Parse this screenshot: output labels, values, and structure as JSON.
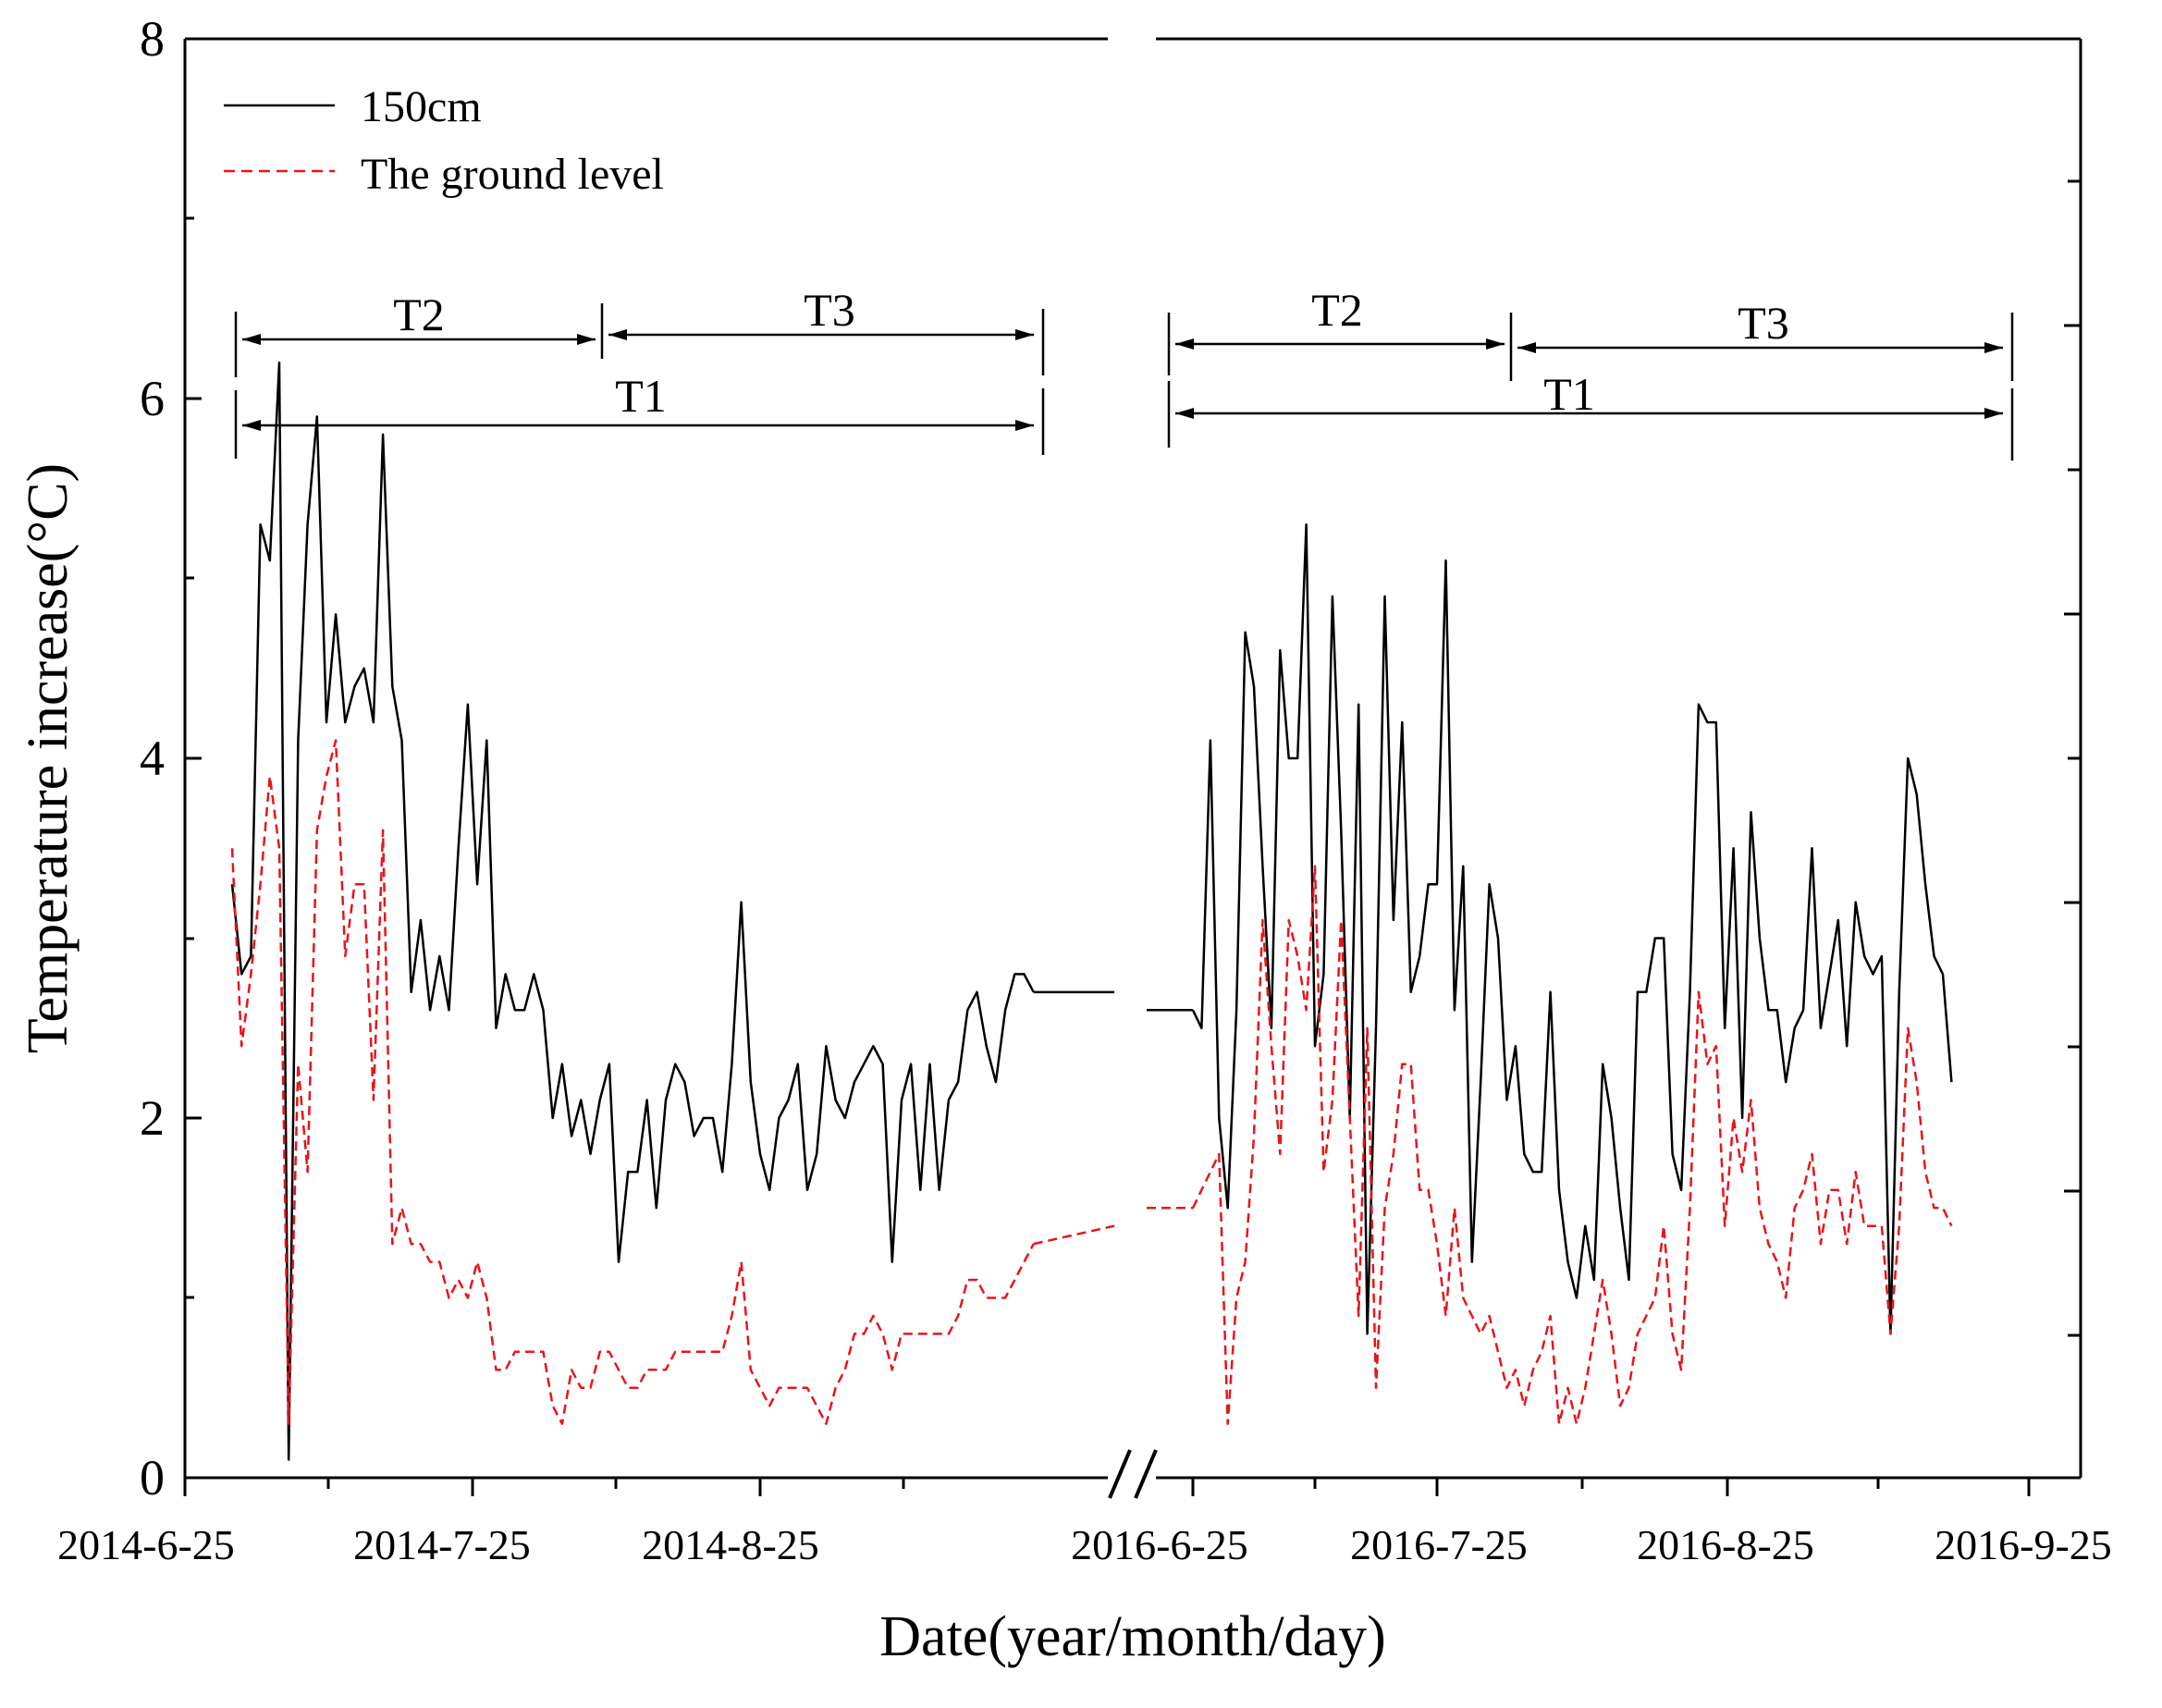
{
  "chart_data": {
    "type": "line",
    "title": "",
    "xlabel": "Date(year/month/day)",
    "ylabel": "Temperature increase(°C)",
    "ylim": [
      0,
      8
    ],
    "yticks": [
      "0",
      "2",
      "4",
      "6",
      "8"
    ],
    "xtick_labels": [
      "2014-6-25",
      "2014-7-25",
      "2014-8-25",
      "2016-6-25",
      "2016-7-25",
      "2016-8-25",
      "2016-9-25"
    ],
    "axis_break": "between 2014 and 2016",
    "grid": false,
    "legend_position": "top-left",
    "colors": {
      "series_150cm": "#000000",
      "series_ground": "#e8141b"
    },
    "segments": [
      {
        "year": 2014,
        "x_start_day": 5,
        "x_end_day": 90,
        "series": [
          {
            "name": "150cm",
            "style": "solid",
            "values": [
              3.3,
              2.8,
              2.9,
              5.3,
              5.1,
              6.2,
              0.1,
              4.1,
              5.3,
              5.9,
              4.2,
              4.8,
              4.2,
              4.4,
              4.5,
              4.2,
              5.8,
              4.4,
              4.1,
              2.7,
              3.1,
              2.6,
              2.9,
              2.6,
              3.5,
              4.3,
              3.3,
              4.1,
              2.5,
              2.8,
              2.6,
              2.6,
              2.8,
              2.6,
              2.0,
              2.3,
              1.9,
              2.1,
              1.8,
              2.1,
              2.3,
              1.2,
              1.7,
              1.7,
              2.1,
              1.5,
              2.1,
              2.3,
              2.2,
              1.9,
              2.0,
              2.0,
              1.7,
              2.3,
              3.2,
              2.2,
              1.8,
              1.6,
              2.0,
              2.1,
              2.3,
              1.6,
              1.8,
              2.4,
              2.1,
              2.0,
              2.2,
              2.3,
              2.4,
              2.3,
              1.2,
              2.1,
              2.3,
              1.6,
              2.3,
              1.6,
              2.1,
              2.2,
              2.6,
              2.7,
              2.4,
              2.2,
              2.6,
              2.8,
              2.8,
              2.7
            ]
          },
          {
            "name": "The ground level",
            "style": "dashed",
            "values": [
              3.5,
              2.4,
              2.8,
              3.3,
              3.9,
              3.5,
              0.3,
              2.3,
              1.7,
              3.6,
              3.9,
              4.1,
              2.9,
              3.3,
              3.3,
              2.1,
              3.6,
              1.3,
              1.5,
              1.3,
              1.3,
              1.2,
              1.2,
              1.0,
              1.1,
              1.0,
              1.2,
              1.0,
              0.6,
              0.6,
              0.7,
              0.7,
              0.7,
              0.7,
              0.4,
              0.3,
              0.6,
              0.5,
              0.5,
              0.7,
              0.7,
              0.6,
              0.5,
              0.5,
              0.6,
              0.6,
              0.6,
              0.7,
              0.7,
              0.7,
              0.7,
              0.7,
              0.7,
              0.9,
              1.2,
              0.6,
              0.5,
              0.4,
              0.5,
              0.5,
              0.5,
              0.5,
              0.4,
              0.3,
              0.5,
              0.6,
              0.8,
              0.8,
              0.9,
              0.8,
              0.6,
              0.8,
              0.8,
              0.8,
              0.8,
              0.8,
              0.8,
              0.9,
              1.1,
              1.1,
              1.0,
              1.0,
              1.0,
              1.1,
              1.2,
              1.3
            ]
          }
        ]
      },
      {
        "year": 2016,
        "x_start_day": 0,
        "x_end_day": 88,
        "series": [
          {
            "name": "150cm",
            "style": "solid",
            "values": [
              2.6,
              2.5,
              4.1,
              2.0,
              1.5,
              2.6,
              4.7,
              4.4,
              3.4,
              2.5,
              4.6,
              4.0,
              4.0,
              5.3,
              2.4,
              2.8,
              4.9,
              3.6,
              2.0,
              4.3,
              0.8,
              2.5,
              4.9,
              3.1,
              4.2,
              2.7,
              2.9,
              3.3,
              3.3,
              5.1,
              2.6,
              3.4,
              1.2,
              2.2,
              3.3,
              3.0,
              2.1,
              2.4,
              1.8,
              1.7,
              1.7,
              2.7,
              1.6,
              1.2,
              1.0,
              1.4,
              1.1,
              2.3,
              2.0,
              1.5,
              1.1,
              2.7,
              2.7,
              3.0,
              3.0,
              1.8,
              1.6,
              2.7,
              4.3,
              4.2,
              4.2,
              2.5,
              3.5,
              2.0,
              3.7,
              3.0,
              2.6,
              2.6,
              2.2,
              2.5,
              2.6,
              3.5,
              2.5,
              2.8,
              3.1,
              2.4,
              3.2,
              2.9,
              2.8,
              2.9,
              0.8,
              2.7,
              4.0,
              3.8,
              3.3,
              2.9,
              2.8,
              2.2
            ]
          },
          {
            "name": "The ground level",
            "style": "dashed",
            "values": [
              1.5,
              1.6,
              1.7,
              1.8,
              0.3,
              1.0,
              1.2,
              1.9,
              3.1,
              2.4,
              1.8,
              3.1,
              2.9,
              2.6,
              3.4,
              1.7,
              2.1,
              3.1,
              2.0,
              0.9,
              2.5,
              0.5,
              1.5,
              1.8,
              2.3,
              2.3,
              1.6,
              1.6,
              1.3,
              0.9,
              1.5,
              1.0,
              0.9,
              0.8,
              0.9,
              0.7,
              0.5,
              0.6,
              0.4,
              0.6,
              0.7,
              0.9,
              0.3,
              0.5,
              0.3,
              0.5,
              0.8,
              1.1,
              0.8,
              0.4,
              0.5,
              0.8,
              0.9,
              1.0,
              1.4,
              0.8,
              0.6,
              1.5,
              2.7,
              2.3,
              2.4,
              1.4,
              2.0,
              1.7,
              2.1,
              1.5,
              1.3,
              1.2,
              1.0,
              1.5,
              1.6,
              1.8,
              1.3,
              1.6,
              1.6,
              1.3,
              1.7,
              1.4,
              1.4,
              1.4,
              0.8,
              1.4,
              2.5,
              2.2,
              1.7,
              1.5,
              1.5,
              1.4
            ]
          }
        ]
      }
    ],
    "annotations": [
      {
        "label": "T2",
        "segment": 2014,
        "level": "upper",
        "from_day": 5,
        "to_day": 43
      },
      {
        "label": "T3",
        "segment": 2014,
        "level": "upper",
        "from_day": 43,
        "to_day": 90
      },
      {
        "label": "T1",
        "segment": 2014,
        "level": "lower",
        "from_day": 5,
        "to_day": 90
      },
      {
        "label": "T2",
        "segment": 2016,
        "level": "upper",
        "from_day": 0,
        "to_day": 36
      },
      {
        "label": "T3",
        "segment": 2016,
        "level": "upper",
        "from_day": 36,
        "to_day": 88
      },
      {
        "label": "T1",
        "segment": 2016,
        "level": "lower",
        "from_day": 0,
        "to_day": 88
      }
    ]
  }
}
